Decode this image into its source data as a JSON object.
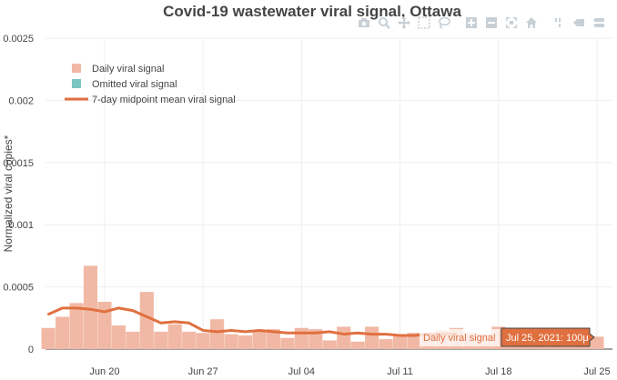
{
  "chart_data": {
    "type": "bar",
    "title": "Covid-19 wastewater viral signal, Ottawa",
    "xlabel": "",
    "ylabel": "Normalized viral copies*",
    "ylim": [
      0,
      0.0025
    ],
    "yticks": [
      "0",
      "0.0005",
      "0.001",
      "0.0015",
      "0.002",
      "0.0025"
    ],
    "ytick_values": [
      0,
      0.0005,
      0.001,
      0.0015,
      0.002,
      0.0025
    ],
    "xticks": [
      "Jun 20",
      "Jun 27",
      "Jul 04",
      "Jul 11",
      "Jul 18",
      "Jul 25"
    ],
    "xtick_days": [
      20,
      27,
      34,
      41,
      48,
      55
    ],
    "xrange_days": [
      15.8,
      56.1
    ],
    "dates_days": [
      16,
      17,
      18,
      19,
      20,
      21,
      22,
      23,
      24,
      25,
      26,
      27,
      28,
      29,
      30,
      31,
      32,
      33,
      34,
      35,
      36,
      37,
      38,
      39,
      40,
      41,
      42,
      43,
      44,
      45,
      46,
      47,
      48,
      49,
      50,
      51,
      52,
      53,
      54,
      55
    ],
    "series": [
      {
        "name": "Daily viral signal",
        "color": "#f1b9a5",
        "values": [
          0.00017,
          0.00026,
          0.00037,
          0.00067,
          0.00038,
          0.00019,
          0.00014,
          0.00046,
          0.00014,
          0.0002,
          0.00014,
          0.00013,
          0.00024,
          0.00012,
          0.00011,
          0.00015,
          0.00016,
          9e-05,
          0.00017,
          0.00016,
          7e-05,
          0.00018,
          6e-05,
          0.00018,
          8e-05,
          0.00012,
          0.00013,
          0.00012,
          0.00015,
          0.00017,
          0.00013,
          0.00012,
          0.00018,
          0.00015,
          0.00012,
          0.00014,
          0.00013,
          0.00012,
          0.00011,
          0.0001
        ]
      },
      {
        "name": "Omitted viral signal",
        "color": "#7bc4c1",
        "values": []
      },
      {
        "name": "7-day midpoint mean viral signal",
        "color": "#e07040",
        "x_days": [
          16,
          17,
          18,
          19,
          20,
          21,
          22,
          23,
          24,
          25,
          26,
          27,
          28,
          29,
          30,
          31,
          32,
          33,
          34,
          35,
          36,
          37,
          38,
          39,
          40,
          41,
          42,
          43,
          44,
          45
        ],
        "values": [
          0.00028,
          0.00033,
          0.00033,
          0.00032,
          0.0003,
          0.00033,
          0.00031,
          0.00026,
          0.00021,
          0.00022,
          0.00021,
          0.00015,
          0.00014,
          0.00015,
          0.00014,
          0.00015,
          0.00014,
          0.00013,
          0.00013,
          0.00013,
          0.00014,
          0.00012,
          0.00013,
          0.00012,
          0.00012,
          0.00011,
          0.00011,
          0.00012,
          0.00012,
          0.00012
        ]
      }
    ],
    "hover": {
      "label": "Daily viral signal",
      "value": "Jul 25, 2021: 100μ"
    }
  },
  "modebar": [
    "camera-icon",
    "zoom-icon",
    "pan-icon",
    "box-select-icon",
    "lasso-icon",
    "zoom-in-icon",
    "zoom-out-icon",
    "autoscale-icon",
    "home-icon",
    "spike-lines-icon",
    "hover-closest-icon",
    "hover-compare-icon",
    "plotly-logo-icon"
  ],
  "colors": {
    "accent": "#e07040",
    "bars": "#f1b9a5",
    "omitted": "#7bc4c1"
  }
}
